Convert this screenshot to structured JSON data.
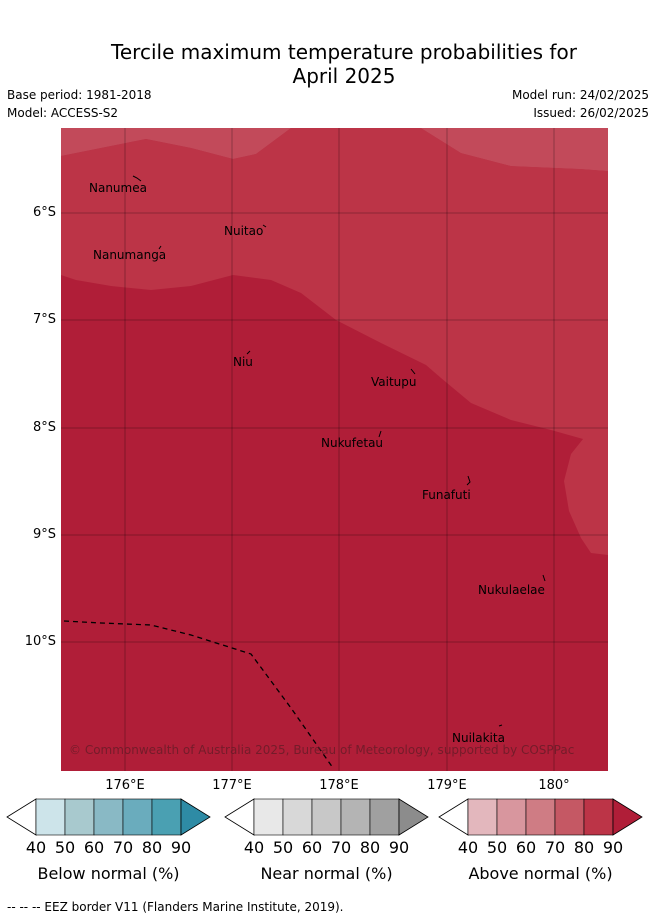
{
  "title_line1": "Tercile maximum temperature probabilities for",
  "title_line2": "April 2025",
  "base_period": "Base period: 1981-2018",
  "model": "Model: ACCESS-S2",
  "model_run": "Model run: 24/02/2025",
  "issued": "Issued: 26/02/2025",
  "lat_labels": [
    "6°S",
    "7°S",
    "8°S",
    "9°S",
    "10°S"
  ],
  "lon_labels": [
    "176°E",
    "177°E",
    "178°E",
    "179°E",
    "180°"
  ],
  "places": [
    "Nanumea",
    "Nuitao",
    "Nanumanga",
    "Niu",
    "Vaitupu",
    "Nukufetau",
    "Funafuti",
    "Nukulaelae",
    "Nuilakita"
  ],
  "copyright": "© Commonwealth of Australia 2025, Bureau of Meteorology, supported by COSPPac",
  "colorbars": [
    {
      "label": "Below normal (%)",
      "ticks": [
        "40",
        "50",
        "60",
        "70",
        "80",
        "90"
      ],
      "colors": [
        "#ffffff",
        "#cde4ea",
        "#a8c9ce",
        "#89b9c5",
        "#6aacbd",
        "#4aa0b2",
        "#2e8ba5"
      ]
    },
    {
      "label": "Near normal (%)",
      "ticks": [
        "40",
        "50",
        "60",
        "70",
        "80",
        "90"
      ],
      "colors": [
        "#ffffff",
        "#e8e8e8",
        "#d8d8d8",
        "#c8c8c8",
        "#b4b4b4",
        "#a0a0a0",
        "#8c8c8c"
      ]
    },
    {
      "label": "Above normal (%)",
      "ticks": [
        "40",
        "50",
        "60",
        "70",
        "80",
        "90"
      ],
      "colors": [
        "#ffffff",
        "#e3b7bd",
        "#d8969e",
        "#cf7c84",
        "#c55864",
        "#bc3447",
        "#b01e38"
      ]
    }
  ],
  "footer": "--  --  -- EEZ border V11 (Flanders Marine Institute, 2019).",
  "fill_colors": {
    "above_70_80": "#bc3447",
    "above_60_70": "#c55864",
    "above_80_90": "#b01e38"
  }
}
